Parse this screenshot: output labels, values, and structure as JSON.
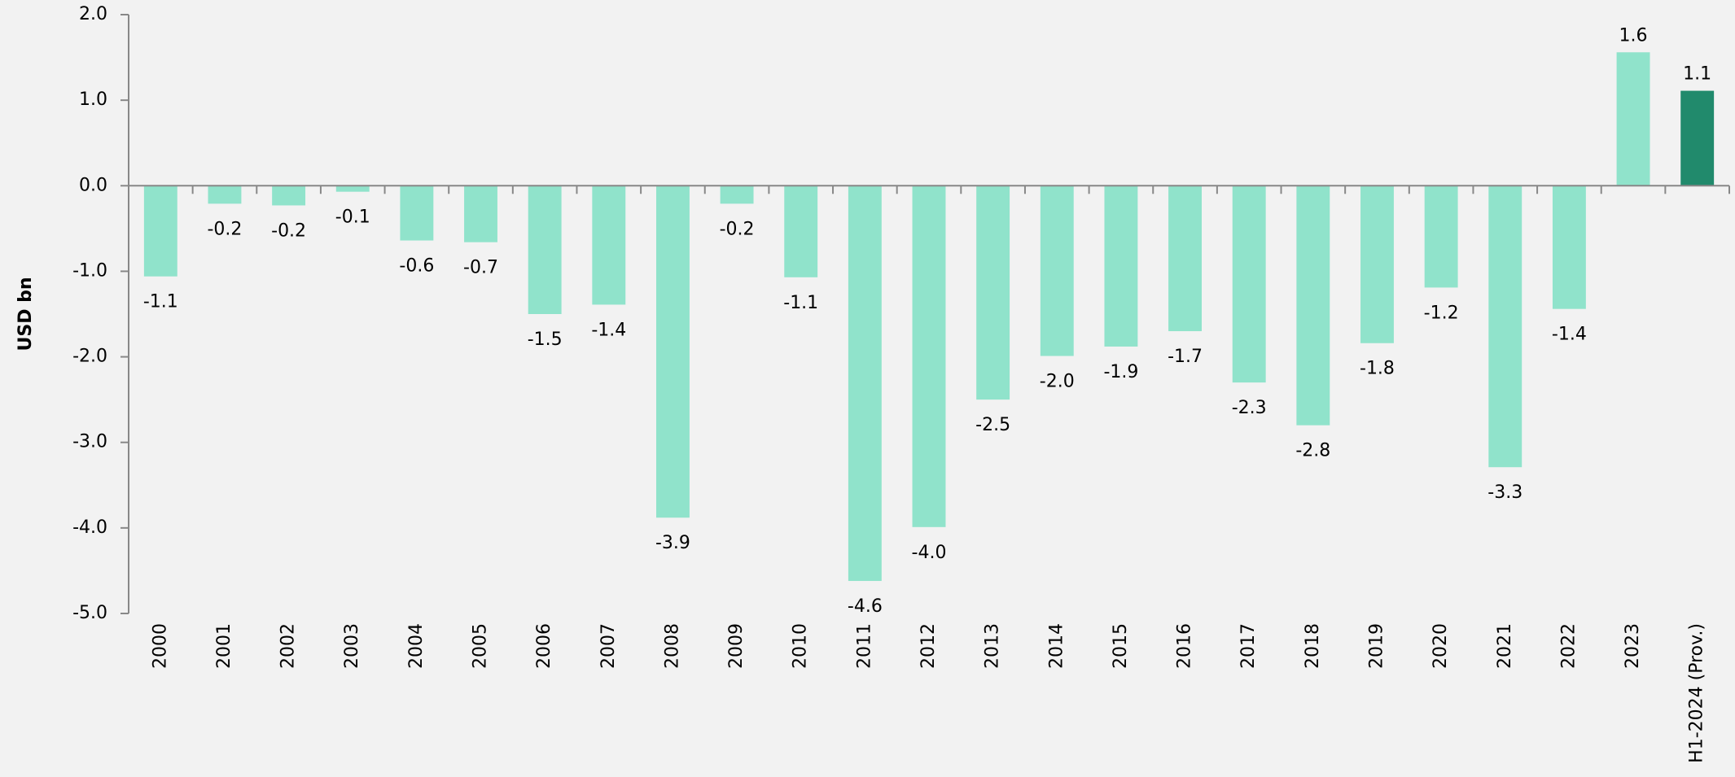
{
  "chart_data": {
    "type": "bar",
    "y_label": "USD bn",
    "categories": [
      "2000",
      "2001",
      "2002",
      "2003",
      "2004",
      "2005",
      "2006",
      "2007",
      "2008",
      "2009",
      "2010",
      "2011",
      "2012",
      "2013",
      "2014",
      "2015",
      "2016",
      "2017",
      "2018",
      "2019",
      "2020",
      "2021",
      "2022",
      "2023",
      "H1-2024 (Prov.)"
    ],
    "values": [
      -1.06,
      -0.21,
      -0.23,
      -0.07,
      -0.64,
      -0.66,
      -1.5,
      -1.39,
      -3.88,
      -0.21,
      -1.07,
      -4.62,
      -3.99,
      -2.5,
      -1.99,
      -1.88,
      -1.7,
      -2.3,
      -2.8,
      -1.84,
      -1.19,
      -3.29,
      -1.44,
      1.56,
      1.11
    ],
    "value_labels": [
      "-1.1",
      "-0.2",
      "-0.2",
      "-0.1",
      "-0.6",
      "-0.7",
      "-1.5",
      "-1.4",
      "-3.9",
      "-0.2",
      "-1.1",
      "-4.6",
      "-4.0",
      "-2.5",
      "-2.0",
      "-1.9",
      "-1.7",
      "-2.3",
      "-2.8",
      "-1.8",
      "-1.2",
      "-3.3",
      "-1.4",
      "1.6",
      "1.1"
    ],
    "colors": [
      "#90e3cb",
      "#90e3cb",
      "#90e3cb",
      "#90e3cb",
      "#90e3cb",
      "#90e3cb",
      "#90e3cb",
      "#90e3cb",
      "#90e3cb",
      "#90e3cb",
      "#90e3cb",
      "#90e3cb",
      "#90e3cb",
      "#90e3cb",
      "#90e3cb",
      "#90e3cb",
      "#90e3cb",
      "#90e3cb",
      "#90e3cb",
      "#90e3cb",
      "#90e3cb",
      "#90e3cb",
      "#90e3cb",
      "#90e3cb",
      "#218a6c"
    ],
    "ylim": [
      -5,
      2
    ],
    "yticks": [
      {
        "value": -5,
        "label": "-5.0"
      },
      {
        "value": -4,
        "label": "-4.0"
      },
      {
        "value": -3,
        "label": "-3.0"
      },
      {
        "value": -2,
        "label": "-2.0"
      },
      {
        "value": -1,
        "label": "-1.0"
      },
      {
        "value": 0,
        "label": "0.0"
      },
      {
        "value": 1,
        "label": "1.0"
      },
      {
        "value": 2,
        "label": "2.0"
      }
    ],
    "grid": false
  }
}
